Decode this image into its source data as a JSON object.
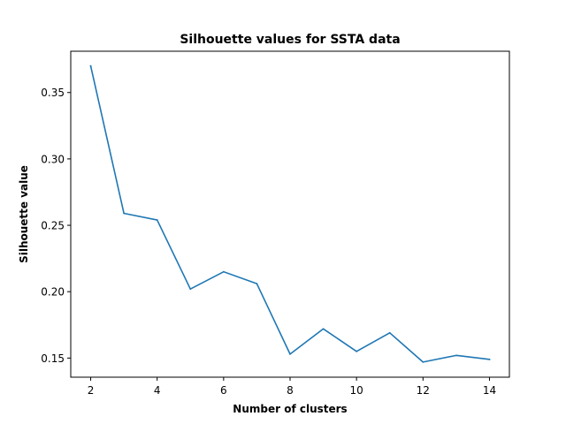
{
  "chart_data": {
    "type": "line",
    "title": "Silhouette values for SSTA data",
    "xlabel": "Number of clusters",
    "ylabel": "Silhouette value",
    "x": [
      2,
      3,
      4,
      5,
      6,
      7,
      8,
      9,
      10,
      11,
      12,
      13,
      14
    ],
    "series": [
      {
        "values": [
          0.37,
          0.259,
          0.254,
          0.202,
          0.215,
          0.206,
          0.153,
          0.172,
          0.155,
          0.169,
          0.147,
          0.152,
          0.149
        ],
        "color": "#1f77b4"
      }
    ],
    "xlim": [
      1.4,
      14.6
    ],
    "ylim": [
      0.1356,
      0.3811
    ],
    "xticks": [
      "2",
      "4",
      "6",
      "8",
      "10",
      "12",
      "14"
    ],
    "yticks": [
      "0.15",
      "0.20",
      "0.25",
      "0.30",
      "0.35"
    ],
    "grid": false,
    "legend": "none"
  }
}
